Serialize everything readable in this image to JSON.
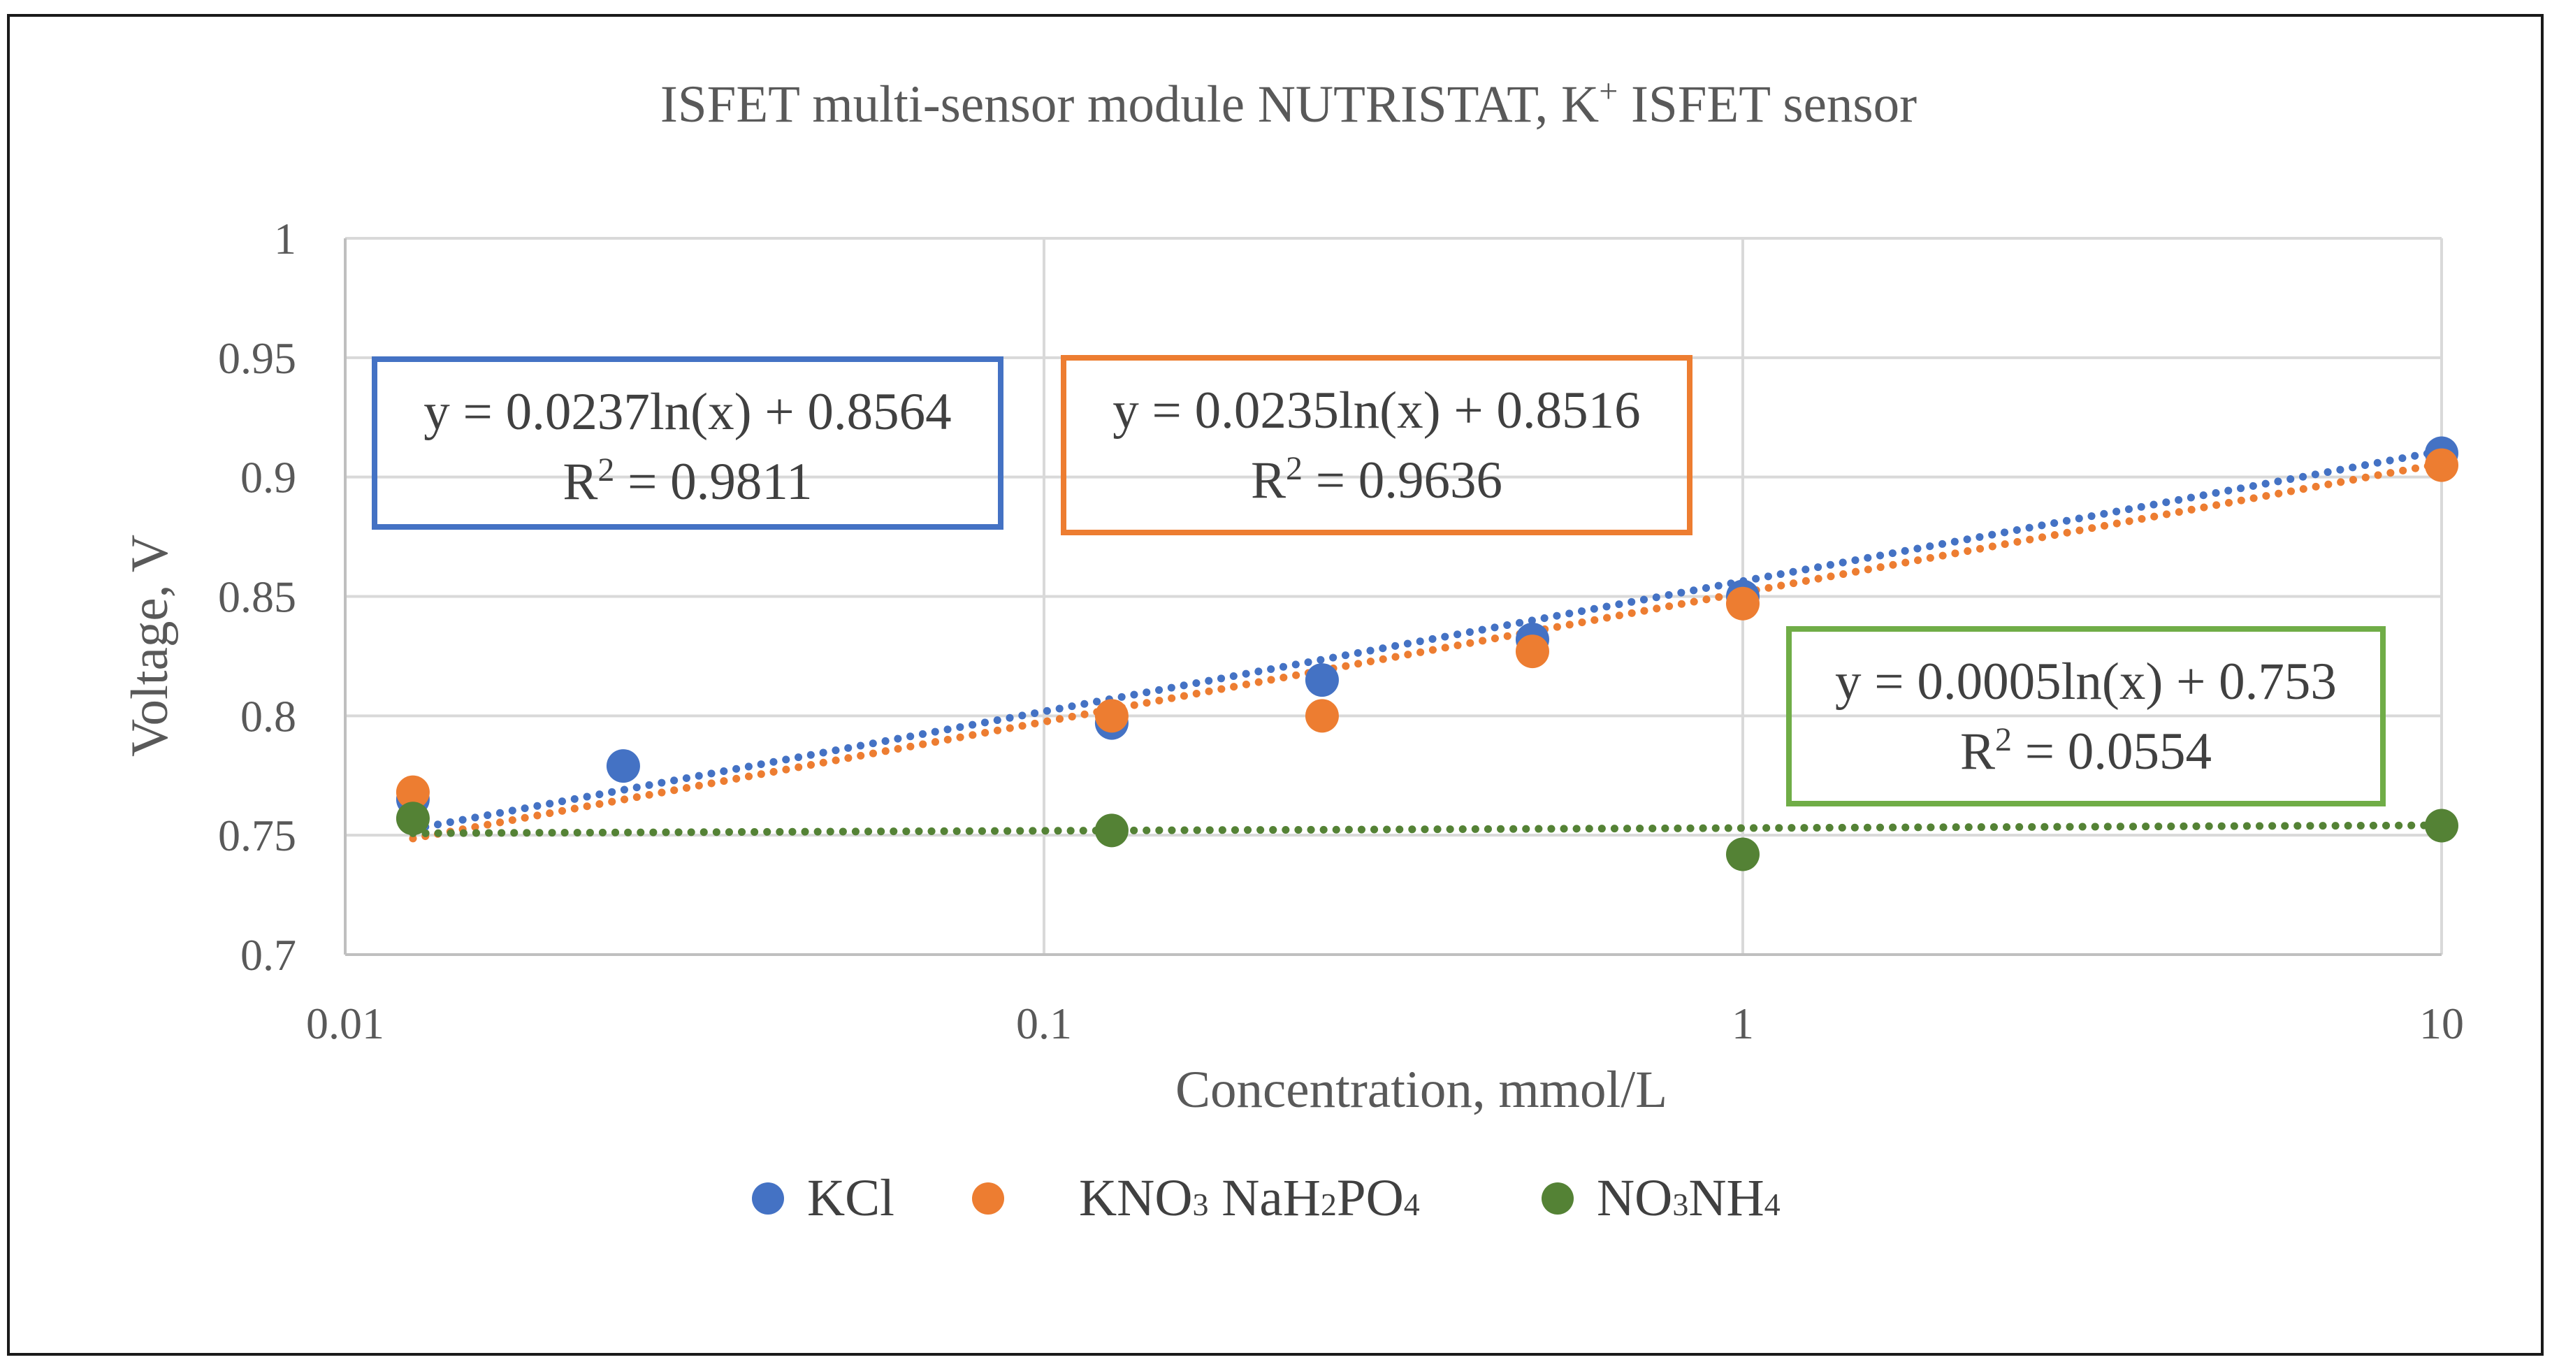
{
  "chart_data": {
    "type": "scatter",
    "title": "ISFET multi-sensor module NUTRISTAT, K",
    "title_sup": "+",
    "title_suffix": " ISFET sensor",
    "xlabel": "Concentration, mmol/L",
    "ylabel": "Voltage, V",
    "x_scale": "log",
    "xlim": [
      0.01,
      10
    ],
    "ylim": [
      0.7,
      1.0
    ],
    "x_ticks": [
      0.01,
      0.1,
      1,
      10
    ],
    "x_tick_labels": [
      "0.01",
      "0.1",
      "1",
      "10"
    ],
    "y_ticks": [
      0.7,
      0.75,
      0.8,
      0.85,
      0.9,
      0.95,
      1.0
    ],
    "y_tick_labels": [
      "0.7",
      "0.75",
      "0.8",
      "0.85",
      "0.9",
      "0.95",
      "1"
    ],
    "grid": true,
    "legend_position": "bottom",
    "series": [
      {
        "name": "KCl",
        "legend_parts": [
          {
            "t": "KCl",
            "s": ""
          }
        ],
        "color": "#4472C4",
        "x": [
          0.0125,
          0.025,
          0.125,
          0.25,
          0.5,
          1,
          10
        ],
        "y": [
          0.765,
          0.779,
          0.797,
          0.815,
          0.832,
          0.85,
          0.91
        ],
        "trendline": {
          "a": 0.0237,
          "b": 0.8564,
          "x_from": 0.0125,
          "x_to": 10
        },
        "equation": "y = 0.0237ln(x) + 0.8564",
        "r2_prefix": "R",
        "r2_sup": "2",
        "r2_value": " = 0.9811",
        "label_box_color": "#4472C4"
      },
      {
        "name": "KNO3 NaH2PO4",
        "legend_parts": [
          {
            "t": "KNO",
            "s": "3"
          },
          {
            "t": " NaH",
            "s": "2"
          },
          {
            "t": "PO",
            "s": "4"
          }
        ],
        "color": "#ED7D31",
        "x": [
          0.0125,
          0.125,
          0.25,
          0.5,
          1,
          10
        ],
        "y": [
          0.768,
          0.8,
          0.8,
          0.827,
          0.847,
          0.905
        ],
        "trendline": {
          "a": 0.0235,
          "b": 0.8516,
          "x_from": 0.0125,
          "x_to": 10
        },
        "equation": "y = 0.0235ln(x) + 0.8516",
        "r2_prefix": "R",
        "r2_sup": "2",
        "r2_value": " = 0.9636",
        "label_box_color": "#ED7D31"
      },
      {
        "name": "NO3NH4",
        "legend_parts": [
          {
            "t": "NO",
            "s": "3"
          },
          {
            "t": "NH",
            "s": "4"
          }
        ],
        "color": "#548235",
        "x": [
          0.0125,
          0.125,
          1,
          10
        ],
        "y": [
          0.757,
          0.752,
          0.742,
          0.754
        ],
        "trendline": {
          "a": 0.0005,
          "b": 0.753,
          "x_from": 0.0125,
          "x_to": 10
        },
        "equation": "y = 0.0005ln(x) + 0.753",
        "r2_prefix": "R",
        "r2_sup": "2",
        "r2_value": " = 0.0554",
        "label_box_color": "#70AD47"
      }
    ]
  }
}
